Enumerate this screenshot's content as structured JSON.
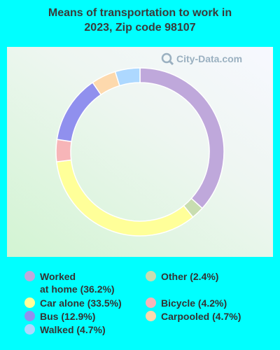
{
  "title": "Means of transportation to work in\n2023, Zip code 98107",
  "watermark": "City-Data.com",
  "chart_data": {
    "type": "pie",
    "subtype": "donut",
    "title": "Means of transportation to work in 2023, Zip code 98107",
    "slices": [
      {
        "label": "Worked at home",
        "value": 36.2,
        "color": "#BFA8DB"
      },
      {
        "label": "Other",
        "value": 2.4,
        "color": "#C8DDB0"
      },
      {
        "label": "Car alone",
        "value": 33.5,
        "color": "#FFFF99"
      },
      {
        "label": "Bicycle",
        "value": 4.2,
        "color": "#F7B5B8"
      },
      {
        "label": "Bus",
        "value": 12.9,
        "color": "#9090EE"
      },
      {
        "label": "Carpooled",
        "value": 4.7,
        "color": "#FDD9AD"
      },
      {
        "label": "Walked",
        "value": 4.7,
        "color": "#ADD8FF"
      }
    ]
  },
  "legend": [
    {
      "label": "Worked\nat home (36.2%)",
      "color": "#BFA8DB"
    },
    {
      "label": "Car alone (33.5%)",
      "color": "#FFFF99"
    },
    {
      "label": "Bus (12.9%)",
      "color": "#9090EE"
    },
    {
      "label": "Walked (4.7%)",
      "color": "#ADD8FF"
    },
    {
      "label": "Other (2.4%)",
      "color": "#C8DDB0"
    },
    {
      "label": "Bicycle (4.2%)",
      "color": "#F7B5B8"
    },
    {
      "label": "Carpooled (4.7%)",
      "color": "#FDD9AD"
    }
  ]
}
